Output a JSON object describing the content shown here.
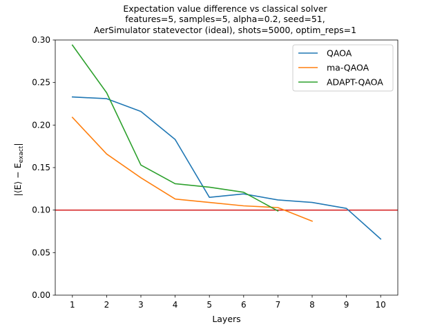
{
  "chart_data": {
    "type": "line",
    "title_lines": [
      "Expectation value difference vs classical solver",
      "features=5, samples=5, alpha=0.2, seed=51,",
      "AerSimulator statevector (ideal), shots=5000, optim_reps=1"
    ],
    "xlabel": "Layers",
    "ylabel": "|⟨E⟩ − E",
    "ylabel_subscript": "exact",
    "ylabel_close": "|",
    "xlim": [
      0.5,
      10.5
    ],
    "ylim": [
      0.0,
      0.3
    ],
    "xticks": [
      1,
      2,
      3,
      4,
      5,
      6,
      7,
      8,
      9,
      10
    ],
    "yticks": [
      0.0,
      0.05,
      0.1,
      0.15,
      0.2,
      0.25,
      0.3
    ],
    "ytick_labels": [
      "0.00",
      "0.05",
      "0.10",
      "0.15",
      "0.20",
      "0.25",
      "0.30"
    ],
    "grid": false,
    "legend_position": "upper right",
    "series": [
      {
        "name": "QAOA",
        "color": "#1f77b4",
        "x": [
          1,
          2,
          3,
          4,
          5,
          6,
          7,
          8,
          9,
          10
        ],
        "y": [
          0.233,
          0.231,
          0.216,
          0.183,
          0.115,
          0.119,
          0.112,
          0.109,
          0.102,
          0.066
        ]
      },
      {
        "name": "ma-QAOA",
        "color": "#ff7f0e",
        "x": [
          1,
          2,
          3,
          4,
          5,
          6,
          7,
          8
        ],
        "y": [
          0.209,
          0.166,
          0.138,
          0.113,
          0.109,
          0.105,
          0.103,
          0.087
        ]
      },
      {
        "name": "ADAPT-QAOA",
        "color": "#2ca02c",
        "x": [
          1,
          2,
          3,
          4,
          5,
          6,
          7
        ],
        "y": [
          0.294,
          0.238,
          0.153,
          0.131,
          0.127,
          0.121,
          0.099
        ]
      }
    ],
    "reference_line": {
      "y": 0.1,
      "color": "#d62728"
    }
  }
}
